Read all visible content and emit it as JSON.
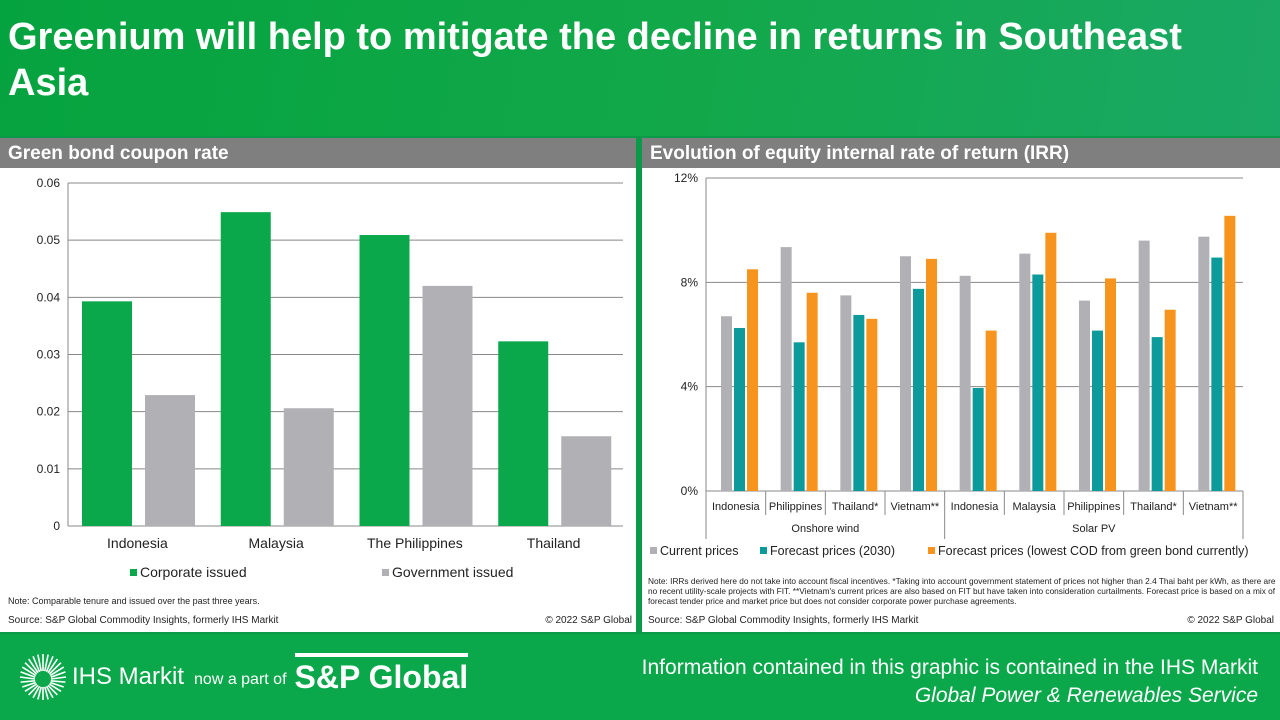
{
  "title": "Greenium will help to mitigate the decline in returns in Southeast Asia",
  "left_panel": {
    "header": "Green bond coupon rate",
    "note": "Note: Comparable tenure and issued over the past three years.",
    "source": "Source: S&P Global Commodity Insights, formerly IHS Markit",
    "copyright": "© 2022 S&P Global"
  },
  "right_panel": {
    "header": "Evolution of equity internal rate of return (IRR)",
    "note": "Note: IRRs derived here do not take into account fiscal incentives. *Taking into account government statement of prices not higher than 2.4 Thai baht per kWh, as there are no recent utility-scale projects with FIT. **Vietnam's current prices are also based on FIT but have taken into consideration curtailments. Forecast price is based on a mix of forecast tender price and market price but does not consider corporate power purchase agreements.",
    "source": "Source: S&P Global Commodity Insights, formerly IHS Markit",
    "copyright": "© 2022 S&P Global"
  },
  "footer": {
    "logo_ihs": "IHS Markit",
    "logo_mid": "now a part of",
    "logo_sp": "S&P Global",
    "info_line1": "Information contained in this graphic is contained in the IHS Markit",
    "info_line2": "Global Power & Renewables Service"
  },
  "chart_data": [
    {
      "type": "bar",
      "categories": [
        "Indonesia",
        "Malaysia",
        "The Philippines",
        "Thailand"
      ],
      "series": [
        {
          "name": "Corporate issued",
          "color": "#0aa84a",
          "values": [
            0.0393,
            0.0549,
            0.0509,
            0.0323
          ]
        },
        {
          "name": "Government issued",
          "color": "#b1b1b5",
          "values": [
            0.0229,
            0.0206,
            0.042,
            0.0157
          ]
        }
      ],
      "ylim": [
        0,
        0.06
      ],
      "yticks": [
        "0",
        "0.01",
        "0.02",
        "0.03",
        "0.04",
        "0.05",
        "0.06"
      ],
      "grid": true,
      "legend": "bottom"
    },
    {
      "type": "bar",
      "categories": [
        "Indonesia",
        "Philippines",
        "Thailand*",
        "Vietnam**",
        "Indonesia",
        "Malaysia",
        "Philippines",
        "Thailand*",
        "Vietnam**"
      ],
      "groups": [
        {
          "label": "Onshore wind",
          "count": 4
        },
        {
          "label": "Solar PV",
          "count": 5
        }
      ],
      "series": [
        {
          "name": "Current prices",
          "color": "#b1b1b5",
          "values": [
            6.7,
            9.35,
            7.5,
            9.0,
            8.25,
            9.1,
            7.3,
            9.6,
            9.75
          ]
        },
        {
          "name": "Forecast prices (2030)",
          "color": "#0d9a9a",
          "values": [
            6.25,
            5.7,
            6.75,
            7.75,
            3.95,
            8.3,
            6.15,
            5.9,
            8.95
          ]
        },
        {
          "name": "Forecast prices (lowest COD from green bond currently)",
          "color": "#f7941d",
          "values": [
            8.5,
            7.6,
            6.6,
            8.9,
            6.15,
            9.9,
            8.15,
            6.95,
            10.55
          ]
        }
      ],
      "ylim": [
        0,
        12
      ],
      "yticks": [
        "0%",
        "4%",
        "8%",
        "12%"
      ],
      "ylabel_unit": "%",
      "grid": true,
      "legend": "bottom"
    }
  ]
}
